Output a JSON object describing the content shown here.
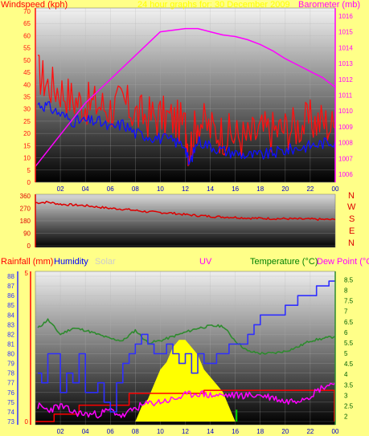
{
  "colors": {
    "background": "#ffff88",
    "wind": "#ff1010",
    "gust_avg": "#1010ff",
    "pressure": "#ff00ff",
    "direction": "#dd0000",
    "humidity": "#3030ff",
    "temperature": "#2e8b2e",
    "dewpoint": "#ff00ff",
    "rainfall": "#ff0000",
    "solar": "#ffff00",
    "uv": "#00dd00"
  },
  "header": {
    "left": "Windspeed (kph)",
    "center": "24 hour graphs for: 30 December 2009",
    "right": "Barometer (mb)"
  },
  "compass": [
    "N",
    "W",
    "S",
    "E",
    "N"
  ],
  "bottom_header": {
    "rainfall": "Rainfall (mm)",
    "humidity": "Humidity",
    "solar": "Solar",
    "uv": "UV",
    "temperature": "Temperature (°C)",
    "dewpoint": "Dew Point (°C)"
  },
  "chart_data": [
    {
      "type": "line",
      "x_ticks": [
        "02",
        "04",
        "06",
        "08",
        "10",
        "12",
        "14",
        "16",
        "18",
        "20",
        "22",
        "00"
      ],
      "y_left_ticks": [
        "0",
        "5",
        "10",
        "15",
        "20",
        "25",
        "30",
        "35",
        "40",
        "45",
        "50",
        "55",
        "60",
        "65",
        "70"
      ],
      "y_left_lim": [
        0,
        70
      ],
      "y_right_ticks": [
        "1006",
        "1007",
        "1008",
        "1009",
        "1010",
        "1011",
        "1012",
        "1013",
        "1014",
        "1015",
        "1016"
      ],
      "y_right_lim": [
        1005.5,
        1016.5
      ],
      "series": [
        {
          "x": [
            0.2,
            1,
            2,
            3,
            4,
            5,
            6,
            7,
            8,
            9,
            10,
            11,
            12,
            12.3,
            13,
            14,
            15,
            16,
            17,
            18,
            19,
            20,
            21,
            22,
            23,
            24
          ],
          "y": [
            45,
            40,
            38,
            34,
            32,
            32,
            30,
            33,
            28,
            27,
            27,
            26,
            23,
            13,
            26,
            22,
            20,
            19,
            18,
            21,
            21,
            22,
            23,
            25,
            25,
            22
          ]
        },
        {
          "x": [
            0.2,
            1,
            2,
            3,
            4,
            5,
            6,
            7,
            8,
            9,
            10,
            11,
            12,
            12.3,
            13,
            14,
            15,
            16,
            17,
            18,
            19,
            20,
            21,
            22,
            23,
            24
          ],
          "y": [
            32,
            31,
            28,
            25,
            25,
            25,
            22,
            24,
            20,
            19,
            18,
            17,
            15,
            7,
            17,
            15,
            13,
            12,
            11,
            11,
            12,
            13,
            14,
            15,
            16,
            17
          ]
        },
        {
          "x": [
            0,
            2,
            4,
            6,
            8,
            10,
            11,
            12,
            13,
            14,
            15,
            16,
            17,
            18,
            19,
            20,
            21,
            22,
            23,
            24
          ],
          "y": [
            1006.5,
            1008.5,
            1010.5,
            1012,
            1013.5,
            1015,
            1015.1,
            1015.2,
            1015.2,
            1015,
            1014.8,
            1014.7,
            1014.5,
            1014.2,
            1013.8,
            1013.3,
            1012.9,
            1012.5,
            1012.1,
            1011.5
          ]
        }
      ]
    },
    {
      "type": "line",
      "y_ticks": [
        "0",
        "90",
        "180",
        "270",
        "360"
      ],
      "ylim": [
        0,
        360
      ],
      "series": [
        {
          "x": [
            0,
            1,
            2,
            3,
            4,
            5,
            6,
            7,
            8,
            9,
            10,
            11,
            12,
            13,
            14,
            15,
            16,
            17,
            18,
            19,
            20,
            21,
            22,
            23,
            24
          ],
          "y": [
            310,
            315,
            300,
            295,
            290,
            280,
            270,
            265,
            255,
            245,
            240,
            235,
            225,
            218,
            212,
            208,
            205,
            200,
            198,
            196,
            195,
            193,
            192,
            190,
            188
          ]
        }
      ]
    },
    {
      "type": "line",
      "x_ticks": [
        "02",
        "04",
        "06",
        "08",
        "10",
        "12",
        "14",
        "16",
        "18",
        "20",
        "22",
        "00"
      ],
      "y_humidity_ticks": [
        "73",
        "74",
        "75",
        "76",
        "77",
        "78",
        "79",
        "80",
        "81",
        "82",
        "83",
        "84",
        "85",
        "86",
        "87",
        "88"
      ],
      "humidity_lim": [
        73,
        88.5
      ],
      "y_rain_ticks": [
        "0",
        "5"
      ],
      "rain_lim": [
        0,
        5
      ],
      "y_temp_ticks": [
        "2",
        "2.5",
        "3",
        "3.5",
        "4",
        "4.5",
        "5",
        "5.5",
        "6",
        "6.5",
        "7",
        "7.5",
        "8",
        "8.5"
      ],
      "temp_lim": [
        1.6,
        8.9
      ],
      "series": [
        {
          "x": [
            0.2,
            0.5,
            1,
            1.5,
            2,
            2.5,
            3,
            3.5,
            4,
            4.5,
            5,
            5.5,
            6,
            6.5,
            7,
            7.5,
            8,
            8.5,
            9,
            9.5,
            10,
            10.5,
            11,
            11.5,
            12,
            12.5,
            13,
            13.5,
            14,
            14.5,
            15,
            15.5,
            16,
            17,
            17.5,
            18,
            19,
            20,
            21,
            22,
            22.5,
            23,
            23.5,
            24
          ],
          "y": [
            78,
            77,
            80,
            80,
            76,
            78,
            77,
            80,
            76,
            76,
            77,
            75,
            74,
            77,
            79,
            80,
            81,
            82,
            81,
            80,
            80,
            81,
            80,
            79,
            80,
            78,
            80,
            79,
            79,
            80,
            80,
            81,
            81,
            82,
            83,
            84,
            84,
            85,
            86,
            86,
            87,
            87,
            87.5,
            87.5
          ]
        },
        {
          "x": [
            0.2,
            1,
            2,
            3,
            4,
            5,
            6,
            7,
            8,
            9,
            10,
            11,
            12,
            13,
            14,
            15,
            16,
            17,
            18,
            19,
            20,
            21,
            22,
            23,
            24
          ],
          "y": [
            6.2,
            6.6,
            5.9,
            6.2,
            6.1,
            5.9,
            5.7,
            5.6,
            6.1,
            5.5,
            5.6,
            5.8,
            6.0,
            6.2,
            6.3,
            6.3,
            5.6,
            5.1,
            5.0,
            5.0,
            5.1,
            5.3,
            5.6,
            5.7,
            5.8
          ]
        },
        {
          "x": [
            0.2,
            1,
            2,
            3,
            4,
            5,
            6,
            7,
            8,
            9,
            10,
            11,
            12,
            13,
            14,
            15,
            16,
            17,
            18,
            19,
            20,
            21,
            22,
            23,
            24
          ],
          "y": [
            2.5,
            2.3,
            2.5,
            2.2,
            2.1,
            2.1,
            2.3,
            2.0,
            2.4,
            2.6,
            2.7,
            2.8,
            3.0,
            3.1,
            3.0,
            3.0,
            3.0,
            3.0,
            3.0,
            2.9,
            2.7,
            2.8,
            3.0,
            3.4,
            3.6
          ]
        },
        {
          "x": [
            0,
            1,
            1.5,
            3,
            3.5,
            7,
            7.5,
            13,
            13.5,
            24
          ],
          "y": [
            0,
            0,
            0.25,
            0.25,
            0.55,
            0.55,
            0.95,
            0.95,
            1.05,
            1.05
          ]
        },
        {
          "x": [
            8,
            8.5,
            9,
            9.5,
            10,
            10.5,
            11,
            11.5,
            12,
            12.5,
            13,
            13.5,
            14,
            14.5,
            15,
            15.5,
            16
          ],
          "y": [
            0,
            0.1,
            0.15,
            0.25,
            0.35,
            0.4,
            0.5,
            0.55,
            0.55,
            0.5,
            0.45,
            0.35,
            0.3,
            0.25,
            0.2,
            0.1,
            0
          ]
        },
        {
          "x": [
            16.1
          ],
          "y": [
            0.4
          ]
        }
      ]
    }
  ]
}
